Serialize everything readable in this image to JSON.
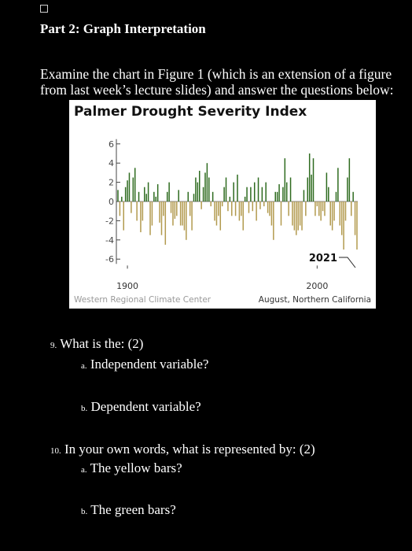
{
  "header": {
    "checkbox_state": "unchecked",
    "part_title": "Part 2: Graph Interpretation"
  },
  "intro": {
    "text": "Examine the chart in Figure 1 (which is an extension of a figure from last week’s lecture slides) and answer the questions below:"
  },
  "figure": {
    "title": "Palmer Drought Severity Index",
    "caption_left": "Western Regional Climate Center",
    "caption_right": "August, Northern California",
    "colors": {
      "positive": "#2e6b1f",
      "negative": "#b29a4e",
      "text": "#111111"
    }
  },
  "chart_data": {
    "type": "bar",
    "title": "Palmer Drought Severity Index",
    "xlabel": "",
    "ylabel": "",
    "ylim": [
      -6.5,
      6.5
    ],
    "y_ticks": [
      6,
      4,
      2,
      0,
      -2,
      -4,
      -6
    ],
    "x_ticks": [
      {
        "value": 1900,
        "label": "1900"
      },
      {
        "value": 2000,
        "label": "2000"
      }
    ],
    "annotation": "2021",
    "x": [
      1895,
      1896,
      1897,
      1898,
      1899,
      1900,
      1901,
      1902,
      1903,
      1904,
      1905,
      1906,
      1907,
      1908,
      1909,
      1910,
      1911,
      1912,
      1913,
      1914,
      1915,
      1916,
      1917,
      1918,
      1919,
      1920,
      1921,
      1922,
      1923,
      1924,
      1925,
      1926,
      1927,
      1928,
      1929,
      1930,
      1931,
      1932,
      1933,
      1934,
      1935,
      1936,
      1937,
      1938,
      1939,
      1940,
      1941,
      1942,
      1943,
      1944,
      1945,
      1946,
      1947,
      1948,
      1949,
      1950,
      1951,
      1952,
      1953,
      1954,
      1955,
      1956,
      1957,
      1958,
      1959,
      1960,
      1961,
      1962,
      1963,
      1964,
      1965,
      1966,
      1967,
      1968,
      1969,
      1970,
      1971,
      1972,
      1973,
      1974,
      1975,
      1976,
      1977,
      1978,
      1979,
      1980,
      1981,
      1982,
      1983,
      1984,
      1985,
      1986,
      1987,
      1988,
      1989,
      1990,
      1991,
      1992,
      1993,
      1994,
      1995,
      1996,
      1997,
      1998,
      1999,
      2000,
      2001,
      2002,
      2003,
      2004,
      2005,
      2006,
      2007,
      2008,
      2009,
      2010,
      2011,
      2012,
      2013,
      2014,
      2015,
      2016,
      2017,
      2018,
      2019,
      2020,
      2021
    ],
    "values": [
      1.2,
      -1.5,
      0.5,
      -3.0,
      1.5,
      2.2,
      3.0,
      -1.2,
      2.5,
      3.5,
      -2.0,
      1.0,
      -3.2,
      -2.0,
      1.5,
      0.8,
      2.0,
      -3.5,
      -2.5,
      1.0,
      0.5,
      1.8,
      -2.2,
      -3.5,
      -1.5,
      -4.5,
      1.0,
      2.0,
      -1.2,
      -2.5,
      -1.8,
      -1.5,
      1.2,
      -2.5,
      -2.5,
      -3.0,
      -4.0,
      1.0,
      -1.5,
      -3.0,
      0.8,
      2.5,
      2.0,
      3.2,
      -0.8,
      1.5,
      3.0,
      4.0,
      2.5,
      -0.5,
      1.0,
      -2.0,
      -2.5,
      -1.5,
      -3.0,
      -0.5,
      1.5,
      2.5,
      -1.0,
      0.5,
      -1.5,
      2.0,
      -1.5,
      2.8,
      -2.0,
      -1.5,
      -3.0,
      0.5,
      1.5,
      -1.2,
      1.5,
      -1.0,
      2.0,
      -2.0,
      2.5,
      -0.8,
      1.5,
      -0.5,
      2.0,
      -1.2,
      -1.5,
      -2.5,
      -4.0,
      1.0,
      1.0,
      1.8,
      -2.5,
      1.5,
      4.5,
      2.0,
      -1.5,
      2.5,
      -2.5,
      -3.0,
      -3.5,
      -3.0,
      -2.5,
      -3.0,
      1.2,
      -1.5,
      2.5,
      5.0,
      2.8,
      4.5,
      -1.5,
      -0.5,
      -1.5,
      -2.0,
      -1.0,
      -1.5,
      3.0,
      1.5,
      -2.5,
      -3.0,
      -2.0,
      1.0,
      3.5,
      -2.5,
      -3.5,
      -5.0,
      -2.0,
      2.5,
      4.5,
      -1.5,
      1.0,
      -3.5,
      -5.0
    ],
    "colors": {
      "positive": "#2e6b1f",
      "negative": "#b29a4e"
    }
  },
  "questions": {
    "q9": {
      "number": "9.",
      "text": "What is the: (2)"
    },
    "q9a": {
      "letter": "a.",
      "text": "Independent variable?"
    },
    "q9b": {
      "letter": "b.",
      "text": "Dependent variable?"
    },
    "q10": {
      "number": "10.",
      "text": "In your own words, what is represented by: (2)"
    },
    "q10a": {
      "letter": "a.",
      "text": "The yellow bars?"
    },
    "q10b": {
      "letter": "b.",
      "text": "The green bars?"
    }
  }
}
